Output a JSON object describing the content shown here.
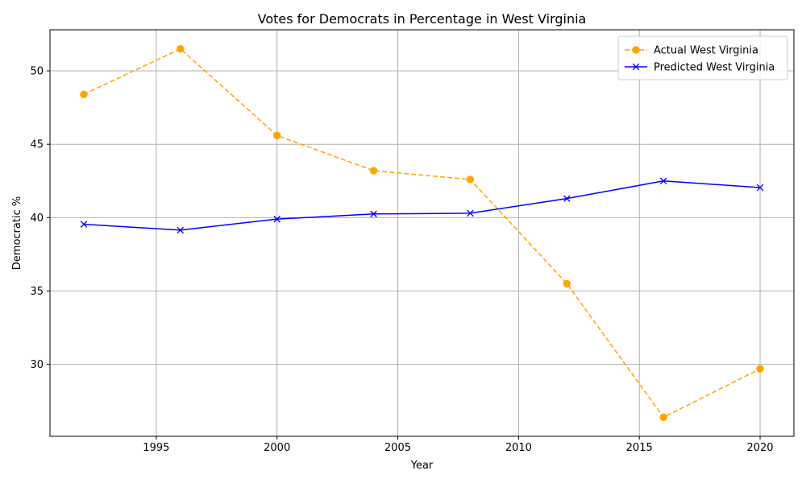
{
  "chart_data": {
    "type": "line",
    "title": "Votes for Democrats in Percentage in West Virginia",
    "xlabel": "Year",
    "ylabel": "Democratic %",
    "x": [
      1992,
      1996,
      2000,
      2004,
      2008,
      2012,
      2016,
      2020
    ],
    "xlim": [
      1990.6,
      2021.4
    ],
    "ylim": [
      25.1,
      52.8
    ],
    "xticks": [
      1995,
      2000,
      2005,
      2010,
      2015,
      2020
    ],
    "yticks": [
      30,
      35,
      40,
      45,
      50
    ],
    "grid": true,
    "legend_position": "top-right",
    "series": [
      {
        "name": "Actual West Virginia",
        "values": [
          48.4,
          51.5,
          45.6,
          43.2,
          42.6,
          35.5,
          26.4,
          29.7
        ],
        "color": "#ffa500",
        "line_style": "dashed",
        "marker": "circle"
      },
      {
        "name": "Predicted West Virginia",
        "values": [
          39.55,
          39.15,
          39.9,
          40.25,
          40.3,
          41.3,
          42.5,
          42.05
        ],
        "color": "#0000ff",
        "line_style": "solid",
        "marker": "x"
      }
    ]
  }
}
